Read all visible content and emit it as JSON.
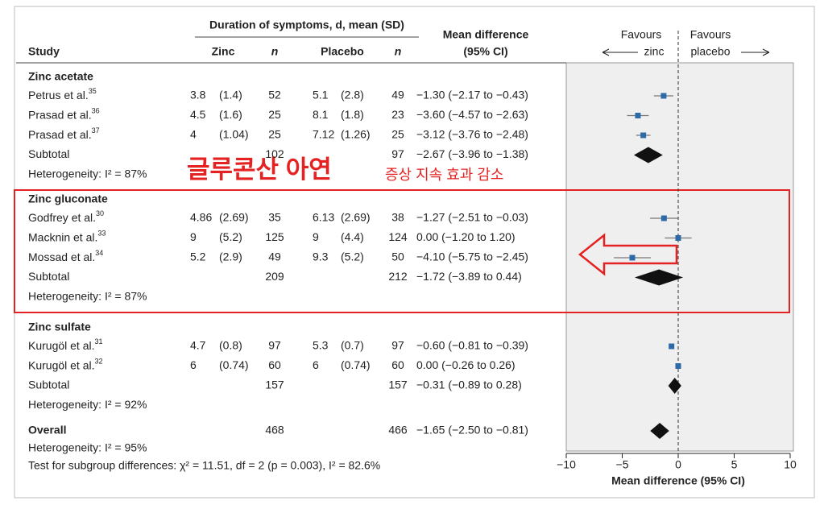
{
  "header": {
    "group_title": "Duration of symptoms, d, mean (SD)",
    "study": "Study",
    "zinc": "Zinc",
    "n1": "n",
    "placebo": "Placebo",
    "n2": "n",
    "md_title": "Mean difference",
    "md_ci": "(95% CI)",
    "favours_left": "Favours",
    "left_label": "zinc",
    "favours_right": "Favours",
    "right_label": "placebo"
  },
  "groups": [
    {
      "name": "Zinc acetate",
      "studies": [
        {
          "study": "Petrus et al.",
          "ref": "35",
          "zinc_mean": "3.8",
          "zinc_sd": "(1.4)",
          "zinc_n": "52",
          "placebo_mean": "5.1",
          "placebo_sd": "(2.8)",
          "placebo_n": "49",
          "md_text": "−1.30 (−2.17 to −0.43)",
          "md": -1.3,
          "ci": [
            -2.17,
            -0.43
          ]
        },
        {
          "study": "Prasad et al.",
          "ref": "36",
          "zinc_mean": "4.5",
          "zinc_sd": "(1.6)",
          "zinc_n": "25",
          "placebo_mean": "8.1",
          "placebo_sd": "(1.8)",
          "placebo_n": "23",
          "md_text": "−3.60 (−4.57 to −2.63)",
          "md": -3.6,
          "ci": [
            -4.57,
            -2.63
          ]
        },
        {
          "study": "Prasad et al.",
          "ref": "37",
          "zinc_mean": "4",
          "zinc_sd": "(1.04)",
          "zinc_n": "25",
          "placebo_mean": "7.12",
          "placebo_sd": "(1.26)",
          "placebo_n": "25",
          "md_text": "−3.12 (−3.76 to −2.48)",
          "md": -3.12,
          "ci": [
            -3.76,
            -2.48
          ]
        }
      ],
      "subtotal": {
        "label": "Subtotal",
        "zinc_n": "102",
        "placebo_n": "97",
        "md_text": "−2.67 (−3.96 to −1.38)",
        "md": -2.67,
        "ci": [
          -3.96,
          -1.38
        ]
      },
      "heterogeneity": "Heterogeneity: I² = 87%"
    },
    {
      "name": "Zinc gluconate",
      "studies": [
        {
          "study": "Godfrey et al.",
          "ref": "30",
          "zinc_mean": "4.86",
          "zinc_sd": "(2.69)",
          "zinc_n": "35",
          "placebo_mean": "6.13",
          "placebo_sd": "(2.69)",
          "placebo_n": "38",
          "md_text": "−1.27 (−2.51 to −0.03)",
          "md": -1.27,
          "ci": [
            -2.51,
            -0.03
          ]
        },
        {
          "study": "Macknin et al.",
          "ref": "33",
          "zinc_mean": "9",
          "zinc_sd": "(5.2)",
          "zinc_n": "125",
          "placebo_mean": "9",
          "placebo_sd": "(4.4)",
          "placebo_n": "124",
          "md_text": "0.00 (−1.20 to 1.20)",
          "md": 0.0,
          "ci": [
            -1.2,
            1.2
          ]
        },
        {
          "study": "Mossad et al.",
          "ref": "34",
          "zinc_mean": "5.2",
          "zinc_sd": "(2.9)",
          "zinc_n": "49",
          "placebo_mean": "9.3",
          "placebo_sd": "(5.2)",
          "placebo_n": "50",
          "md_text": "−4.10 (−5.75 to −2.45)",
          "md": -4.1,
          "ci": [
            -5.75,
            -2.45
          ]
        }
      ],
      "subtotal": {
        "label": "Subtotal",
        "zinc_n": "209",
        "placebo_n": "212",
        "md_text": "−1.72 (−3.89 to 0.44)",
        "md": -1.72,
        "ci": [
          -3.89,
          0.44
        ]
      },
      "heterogeneity": "Heterogeneity: I² = 87%"
    },
    {
      "name": "Zinc sulfate",
      "studies": [
        {
          "study": "Kurugöl et al.",
          "ref": "31",
          "zinc_mean": "4.7",
          "zinc_sd": "(0.8)",
          "zinc_n": "97",
          "placebo_mean": "5.3",
          "placebo_sd": "(0.7)",
          "placebo_n": "97",
          "md_text": "−0.60 (−0.81 to −0.39)",
          "md": -0.6,
          "ci": [
            -0.81,
            -0.39
          ]
        },
        {
          "study": "Kurugöl et al.",
          "ref": "32",
          "zinc_mean": "6",
          "zinc_sd": "(0.74)",
          "zinc_n": "60",
          "placebo_mean": "6",
          "placebo_sd": "(0.74)",
          "placebo_n": "60",
          "md_text": "0.00 (−0.26 to 0.26)",
          "md": 0.0,
          "ci": [
            -0.26,
            0.26
          ]
        }
      ],
      "subtotal": {
        "label": "Subtotal",
        "zinc_n": "157",
        "placebo_n": "157",
        "md_text": "−0.31 (−0.89 to 0.28)",
        "md": -0.31,
        "ci": [
          -0.89,
          0.28
        ]
      },
      "heterogeneity": "Heterogeneity: I² = 92%"
    }
  ],
  "overall": {
    "label": "Overall",
    "zinc_n": "468",
    "placebo_n": "466",
    "md_text": "−1.65 (−2.50 to −0.81)",
    "md": -1.65,
    "ci": [
      -2.5,
      -0.81
    ],
    "heterogeneity": "Heterogeneity: I² = 95%"
  },
  "test": "Test for subgroup differences: χ² = 11.51, df = 2 (p = 0.003), I² = 82.6%",
  "axis": {
    "label": "Mean difference (95% CI)",
    "xlim": [
      -10,
      10
    ],
    "xticks": [
      {
        "value": -10,
        "label": "−10"
      },
      {
        "value": -5,
        "label": "−5"
      },
      0,
      5,
      10
    ]
  },
  "annotations": {
    "title": "글루콘산 아연",
    "subtitle": "증상 지속 효과 감소"
  }
}
